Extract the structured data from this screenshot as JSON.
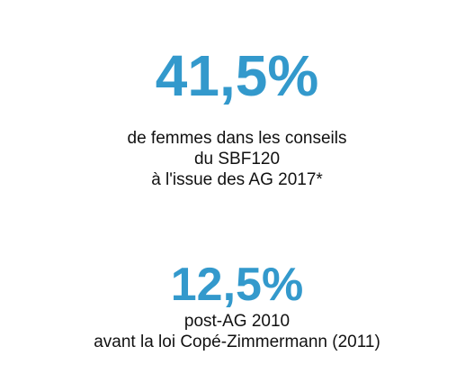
{
  "accent_color": "#3399cc",
  "stat_primary": {
    "value": "41,5%",
    "caption_lines": [
      "de femmes dans les conseils",
      "du SBF120",
      "à l'issue des AG 2017*"
    ]
  },
  "stat_secondary": {
    "value": "12,5%",
    "caption_lines": [
      "post-AG 2010",
      "avant la loi Copé-Zimmermann (2011)"
    ]
  }
}
